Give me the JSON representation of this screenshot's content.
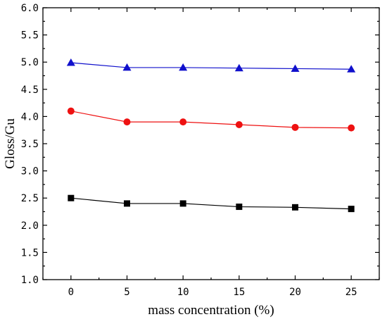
{
  "chart_data": {
    "type": "line",
    "xlabel": "mass concentration (%)",
    "ylabel": "Gloss/Gu",
    "x": [
      0,
      5,
      10,
      15,
      20,
      25
    ],
    "xlim": [
      -2.5,
      27.5
    ],
    "ylim": [
      1.0,
      6.0
    ],
    "x_ticks": [
      "0",
      "5",
      "10",
      "15",
      "20",
      "25"
    ],
    "y_ticks": [
      "1.0",
      "1.5",
      "2.0",
      "2.5",
      "3.0",
      "3.5",
      "4.0",
      "4.5",
      "5.0",
      "5.5",
      "6.0"
    ],
    "grid": false,
    "legend": false,
    "series": [
      {
        "color": "#1010cc",
        "marker": "triangle",
        "values": [
          4.99,
          4.9,
          4.9,
          4.89,
          4.88,
          4.87
        ]
      },
      {
        "color": "#ee1111",
        "marker": "circle",
        "values": [
          4.1,
          3.9,
          3.9,
          3.85,
          3.8,
          3.79
        ]
      },
      {
        "color": "#000000",
        "marker": "square",
        "values": [
          2.5,
          2.4,
          2.4,
          2.34,
          2.33,
          2.3
        ]
      }
    ]
  }
}
